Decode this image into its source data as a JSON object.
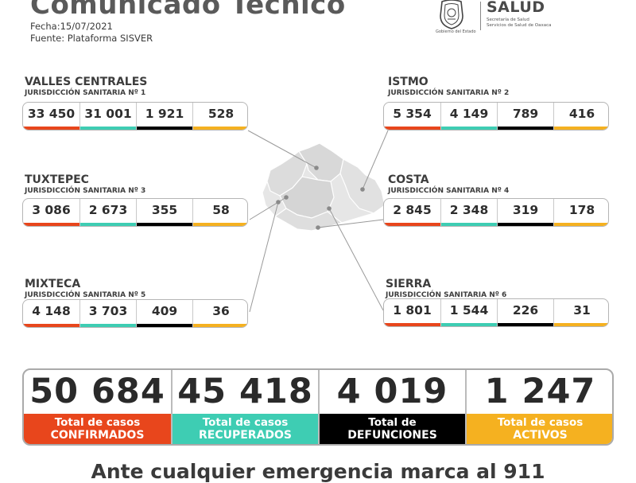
{
  "header": {
    "title": "Comunicado Técnico",
    "date": "Fecha:15/07/2021",
    "source": "Fuente: Plataforma SISVER",
    "salud": "SALUD",
    "salud_sub1": "Secretaría de Salud",
    "salud_sub2": "Servicios de Salud de Oaxaca",
    "logo_caption": "Gobierno del Estado"
  },
  "colors": {
    "confirmados": "#e8461c",
    "recuperados": "#3ecdb3",
    "defunciones": "#000000",
    "activos": "#f5b120"
  },
  "regions": [
    {
      "name": "VALLES CENTRALES",
      "jurisdiction": "JURISDICCIÓN SANITARIA Nº 1",
      "values": {
        "confirmados": "33 450",
        "recuperados": "31 001",
        "defunciones": "1 921",
        "activos": "528"
      }
    },
    {
      "name": "ISTMO",
      "jurisdiction": "JURISDICCIÓN SANITARIA Nº 2",
      "values": {
        "confirmados": "5 354",
        "recuperados": "4 149",
        "defunciones": "789",
        "activos": "416"
      }
    },
    {
      "name": "TUXTEPEC",
      "jurisdiction": "JURISDICCIÓN SANITARIA Nº 3",
      "values": {
        "confirmados": "3 086",
        "recuperados": "2 673",
        "defunciones": "355",
        "activos": "58"
      }
    },
    {
      "name": "COSTA",
      "jurisdiction": "JURISDICCIÓN SANITARIA Nº 4",
      "values": {
        "confirmados": "2 845",
        "recuperados": "2 348",
        "defunciones": "319",
        "activos": "178"
      }
    },
    {
      "name": "MIXTECA",
      "jurisdiction": "JURISDICCIÓN SANITARIA Nº 5",
      "values": {
        "confirmados": "4 148",
        "recuperados": "3 703",
        "defunciones": "409",
        "activos": "36"
      }
    },
    {
      "name": "SIERRA",
      "jurisdiction": "JURISDICCIÓN SANITARIA Nº 6",
      "values": {
        "confirmados": "1 801",
        "recuperados": "1 544",
        "defunciones": "226",
        "activos": "31"
      }
    }
  ],
  "totals": {
    "confirmados": {
      "value": "50 684",
      "line1": "Total de casos",
      "line2": "CONFIRMADOS"
    },
    "recuperados": {
      "value": "45 418",
      "line1": "Total de casos",
      "line2": "RECUPERADOS"
    },
    "defunciones": {
      "value": "4 019",
      "line1": "Total de",
      "line2": "DEFUNCIONES"
    },
    "activos": {
      "value": "1 247",
      "line1": "Total de casos",
      "line2": "ACTIVOS"
    }
  },
  "footer": {
    "text": "Ante cualquier emergencia marca al 911"
  }
}
